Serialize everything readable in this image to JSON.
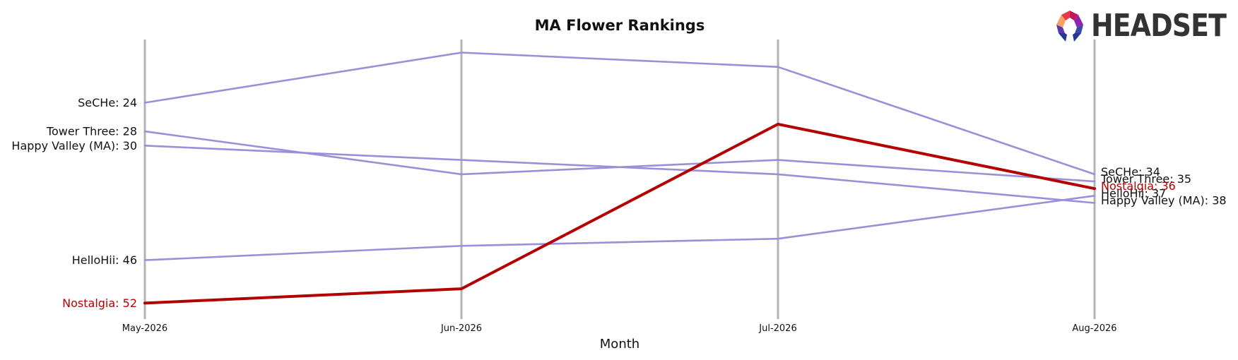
{
  "chart_data": {
    "type": "line",
    "title": "MA Flower Rankings",
    "xlabel": "Month",
    "ylabel": "",
    "categories": [
      "May-2026",
      "Jun-2026",
      "Jul-2026",
      "Aug-2026"
    ],
    "y_inverted": true,
    "grid": "vertical gridlines at each month",
    "series": [
      {
        "name": "SeCHe",
        "values": [
          24,
          17,
          19,
          34
        ],
        "color": "#9b8fd9",
        "highlight": false
      },
      {
        "name": "Tower Three",
        "values": [
          28,
          34,
          32,
          35
        ],
        "color": "#9b8fd9",
        "highlight": false
      },
      {
        "name": "Happy Valley (MA)",
        "values": [
          30,
          32,
          34,
          38
        ],
        "color": "#9b8fd9",
        "highlight": false
      },
      {
        "name": "HelloHii",
        "values": [
          46,
          44,
          43,
          37
        ],
        "color": "#9b8fd9",
        "highlight": false
      },
      {
        "name": "Nostalgia",
        "values": [
          52,
          50,
          27,
          36
        ],
        "color": "#b30000",
        "highlight": true
      }
    ],
    "start_labels": [
      "SeCHe: 24",
      "Tower Three: 28",
      "Happy Valley (MA): 30",
      "HelloHii: 46",
      "Nostalgia: 52"
    ],
    "end_labels": [
      "SeCHe: 34",
      "Tower Three: 35",
      "HelloHii: 37",
      "Nostalgia: 36",
      "Happy Valley (MA): 38"
    ]
  },
  "logo": {
    "text": "HEADSET",
    "colors": [
      "#e63946",
      "#f4a261",
      "#c2185b",
      "#3949ab"
    ]
  }
}
